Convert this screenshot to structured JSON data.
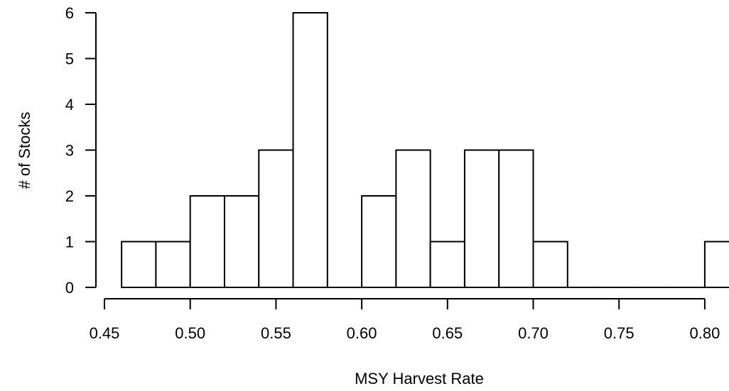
{
  "chart_data": {
    "type": "bar",
    "subtype": "histogram",
    "title": "",
    "xlabel": "MSY Harvest Rate",
    "ylabel": "# of Stocks",
    "bin_width": 0.02,
    "bins": [
      {
        "start": 0.46,
        "end": 0.48,
        "count": 1
      },
      {
        "start": 0.48,
        "end": 0.5,
        "count": 1
      },
      {
        "start": 0.5,
        "end": 0.52,
        "count": 2
      },
      {
        "start": 0.52,
        "end": 0.54,
        "count": 2
      },
      {
        "start": 0.54,
        "end": 0.56,
        "count": 3
      },
      {
        "start": 0.56,
        "end": 0.58,
        "count": 6
      },
      {
        "start": 0.58,
        "end": 0.6,
        "count": 0
      },
      {
        "start": 0.6,
        "end": 0.62,
        "count": 2
      },
      {
        "start": 0.62,
        "end": 0.64,
        "count": 3
      },
      {
        "start": 0.64,
        "end": 0.66,
        "count": 1
      },
      {
        "start": 0.66,
        "end": 0.68,
        "count": 3
      },
      {
        "start": 0.68,
        "end": 0.7,
        "count": 3
      },
      {
        "start": 0.7,
        "end": 0.72,
        "count": 1
      },
      {
        "start": 0.72,
        "end": 0.74,
        "count": 0
      },
      {
        "start": 0.74,
        "end": 0.76,
        "count": 0
      },
      {
        "start": 0.76,
        "end": 0.78,
        "count": 0
      },
      {
        "start": 0.78,
        "end": 0.8,
        "count": 0
      },
      {
        "start": 0.8,
        "end": 0.82,
        "count": 1
      }
    ],
    "xlim": [
      0.45,
      0.8
    ],
    "ylim": [
      0,
      6
    ],
    "x_ticks": [
      "0.45",
      "0.50",
      "0.55",
      "0.60",
      "0.65",
      "0.70",
      "0.75",
      "0.80"
    ],
    "y_ticks": [
      "0",
      "1",
      "2",
      "3",
      "4",
      "5",
      "6"
    ],
    "grid": false,
    "legend": "none",
    "colors": {
      "bar_fill": "#ffffff",
      "bar_stroke": "#000000",
      "axis": "#000000"
    }
  }
}
